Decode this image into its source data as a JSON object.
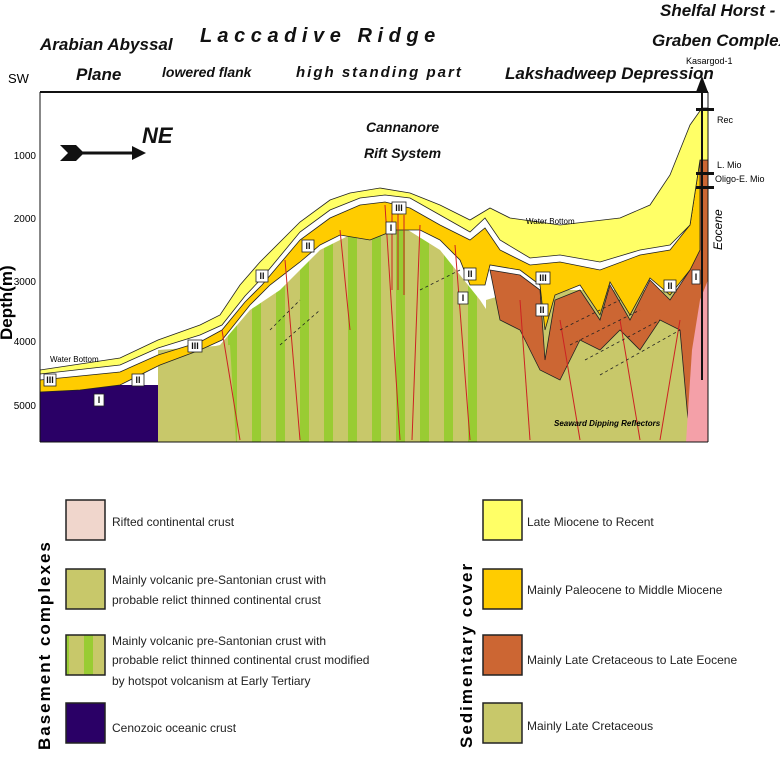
{
  "header": {
    "region_title": "L a c c a d i v e   R i d g e",
    "arabian_line1": "Arabian Abyssal",
    "arabian_line2": "Plane",
    "lowered_flank": "lowered flank",
    "high_standing": "high standing part",
    "lakshadweep": "Lakshadweep Depression",
    "shelfal_line1": "Shelfal Horst -",
    "shelfal_line2": "Graben Complex",
    "well_name": "Kasargod-1",
    "sw": "SW",
    "direction": "NE"
  },
  "axis": {
    "label": "Depth(m)",
    "ticks": [
      "1000",
      "2000",
      "3000",
      "4000",
      "5000"
    ]
  },
  "annotations": {
    "rift_line1": "Cannanore",
    "rift_line2": "Rift System",
    "water_bottom": "Water Bottom",
    "seaward": "Seaward Dipping Reflectors",
    "well_rec": "Rec",
    "well_lmio": "L. Mio",
    "well_oligo": "Oligo-E. Mio",
    "well_eocene": "Eocene"
  },
  "unit_markers": [
    "I",
    "II",
    "III"
  ],
  "legend": {
    "basement_title": "Basement complexes",
    "sediment_title": "Sedimentary cover",
    "basement": [
      {
        "label": "Rifted continental crust",
        "color": "#f0d6cc"
      },
      {
        "label1": "Mainly volcanic pre-Santonian crust with",
        "label2": "probable relict thinned continental crust",
        "color": "#c8c86a"
      },
      {
        "label1": "Mainly volcanic pre-Santonian crust with",
        "label2": "probable relict thinned continental crust modified",
        "label3": "by hotspot volcanism at Early Tertiary",
        "color": "#c8c86a",
        "stripe": "#99cc33"
      },
      {
        "label": "Cenozoic oceanic crust",
        "color": "#2a0066"
      }
    ],
    "sediment": [
      {
        "label": "Late Miocene to Recent",
        "color": "#ffff66"
      },
      {
        "label": "Mainly Paleocene to Middle Miocene",
        "color": "#ffcc00"
      },
      {
        "label": "Mainly Late Cretaceous to Late Eocene",
        "color": "#cc6633"
      },
      {
        "label": "Mainly Late Cretaceous",
        "color": "#c8c86a"
      }
    ]
  }
}
